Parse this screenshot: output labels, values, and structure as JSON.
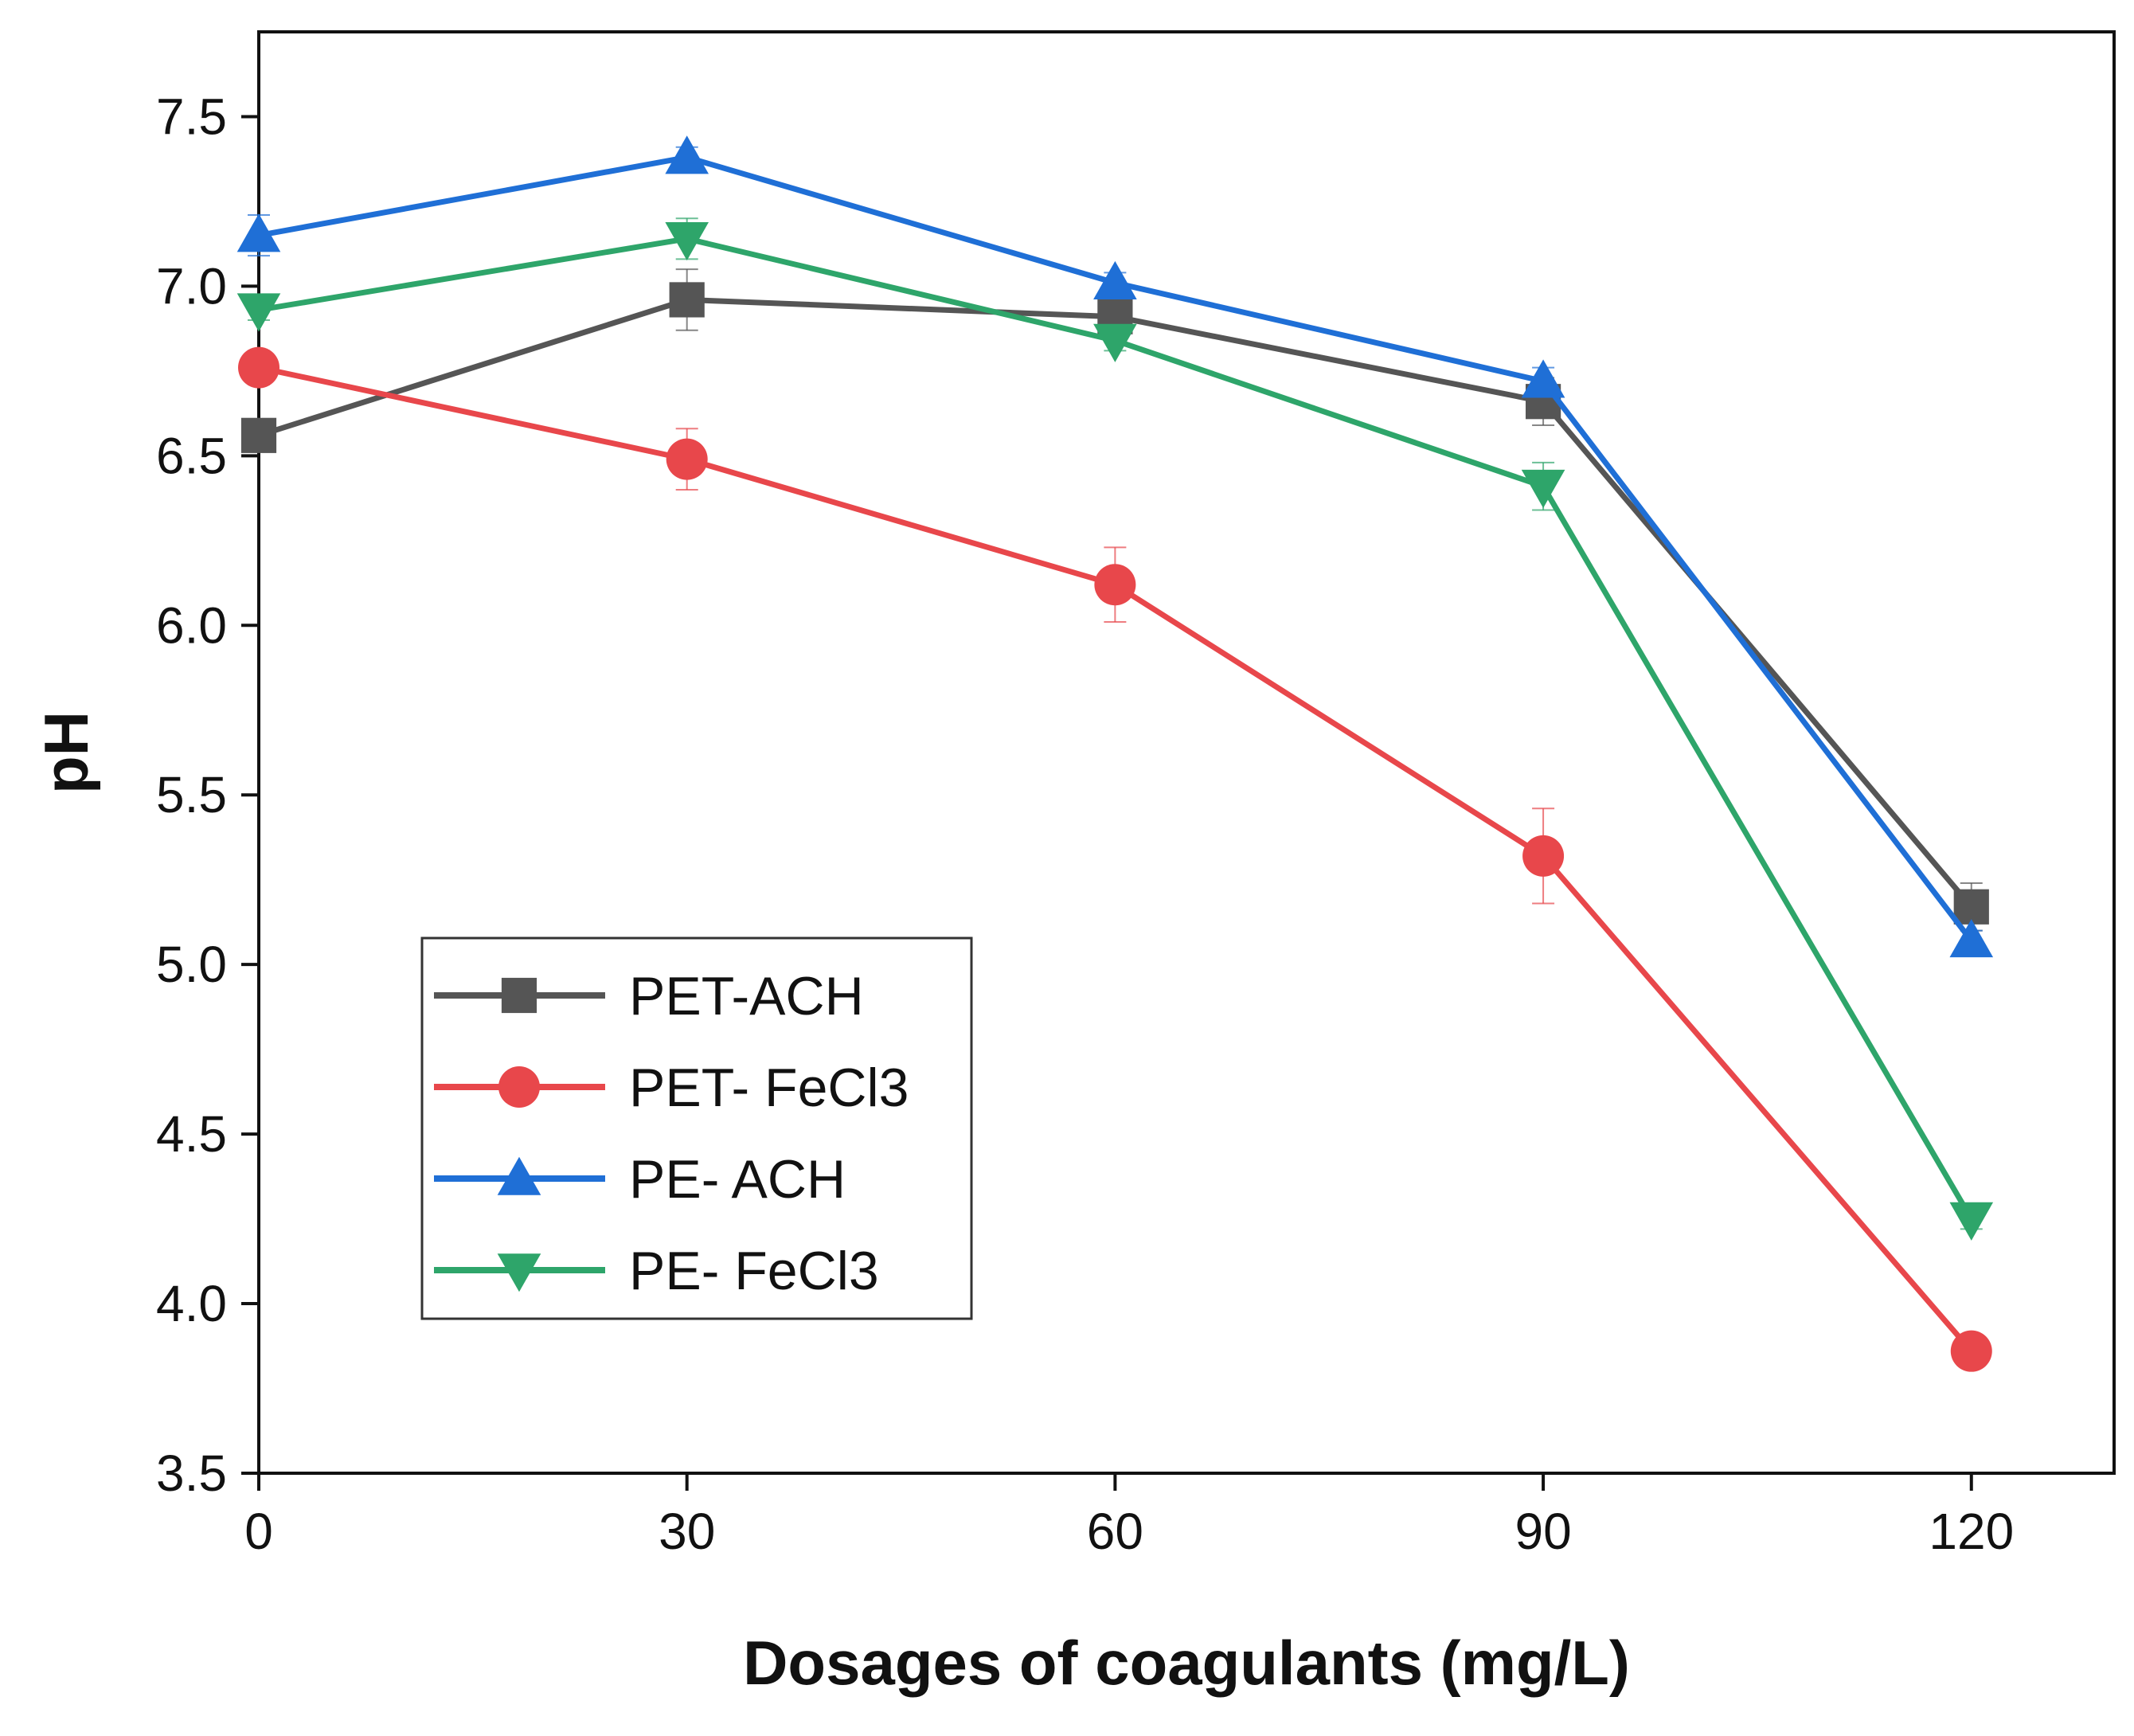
{
  "chart_data": {
    "type": "line",
    "title": "",
    "xlabel": "Dosages of coagulants (mg/L)",
    "ylabel": "pH",
    "x": [
      0,
      30,
      60,
      90,
      120
    ],
    "xlim": [
      0,
      130
    ],
    "ylim": [
      3.5,
      7.75
    ],
    "xticks": [
      "0",
      "30",
      "60",
      "90",
      "120"
    ],
    "yticks": [
      "3.5",
      "4.0",
      "4.5",
      "5.0",
      "5.5",
      "6.0",
      "6.5",
      "7.0",
      "7.5"
    ],
    "grid": false,
    "legend_position": "bottom-left",
    "series": [
      {
        "name": "PET-ACH",
        "color": "#555555",
        "marker": "square",
        "values": [
          6.56,
          6.96,
          6.91,
          6.66,
          5.17
        ],
        "errors": [
          0.04,
          0.09,
          0.03,
          0.07,
          0.07
        ]
      },
      {
        "name": "PET- FeCl3",
        "color": "#e8474b",
        "marker": "circle",
        "values": [
          6.76,
          6.49,
          6.12,
          5.32,
          3.86
        ],
        "errors": [
          0.05,
          0.09,
          0.11,
          0.14,
          0.02
        ]
      },
      {
        "name": "PE- ACH",
        "color": "#1f6fd6",
        "marker": "triangle-up",
        "values": [
          7.15,
          7.38,
          7.01,
          6.72,
          5.07
        ],
        "errors": [
          0.06,
          0.03,
          0.03,
          0.04,
          0.03
        ]
      },
      {
        "name": "PE- FeCl3",
        "color": "#2ea56a",
        "marker": "triangle-down",
        "values": [
          6.93,
          7.14,
          6.84,
          6.41,
          4.25
        ],
        "errors": [
          0.03,
          0.06,
          0.03,
          0.07,
          0.03
        ]
      }
    ]
  }
}
